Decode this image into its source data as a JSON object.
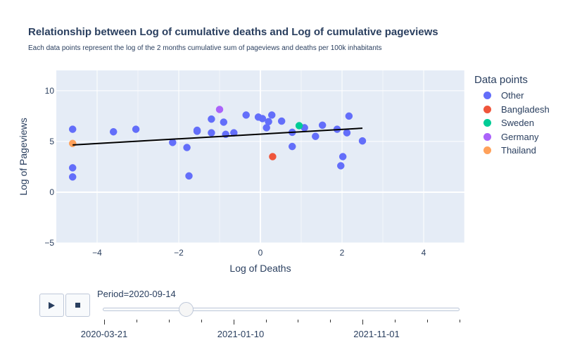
{
  "title": "Relationship between Log of cumulative deaths and Log of cumulative pageviews",
  "subtitle": "Each data points represent the log of the 2 months cumulative sum of pageviews and deaths per 100k inhabitants",
  "legend": {
    "title": "Data points",
    "items": [
      {
        "label": "Other",
        "color": "#636efa"
      },
      {
        "label": "Bangladesh",
        "color": "#ef553b"
      },
      {
        "label": "Sweden",
        "color": "#00cc96"
      },
      {
        "label": "Germany",
        "color": "#ab63fa"
      },
      {
        "label": "Thailand",
        "color": "#ffa15a"
      }
    ]
  },
  "chart_data": {
    "type": "scatter",
    "xlabel": "Log of Deaths",
    "ylabel": "Log of Pageviews",
    "xlim": [
      -5,
      5
    ],
    "ylim": [
      -5,
      12
    ],
    "xticks": [
      -4,
      -2,
      0,
      2,
      4
    ],
    "xtick_labels": [
      "−4",
      "−2",
      "0",
      "2",
      "4"
    ],
    "yticks": [
      -5,
      0,
      5,
      10
    ],
    "ytick_labels": [
      "−5",
      "0",
      "5",
      "10"
    ],
    "grid": true,
    "legend_position": "right",
    "series": [
      {
        "name": "Other",
        "color": "#636efa",
        "points": [
          [
            -4.6,
            6.2
          ],
          [
            -4.6,
            2.4
          ],
          [
            -4.6,
            1.5
          ],
          [
            -3.6,
            5.95
          ],
          [
            -3.05,
            6.2
          ],
          [
            -2.15,
            4.9
          ],
          [
            -1.8,
            4.4
          ],
          [
            -1.75,
            1.6
          ],
          [
            -1.55,
            6.0
          ],
          [
            -1.55,
            6.1
          ],
          [
            -1.2,
            5.85
          ],
          [
            -1.2,
            7.2
          ],
          [
            -0.9,
            6.9
          ],
          [
            -0.85,
            5.7
          ],
          [
            -0.65,
            5.85
          ],
          [
            -0.35,
            7.6
          ],
          [
            -0.05,
            7.4
          ],
          [
            0.05,
            7.25
          ],
          [
            0.15,
            6.35
          ],
          [
            0.2,
            6.95
          ],
          [
            0.28,
            7.6
          ],
          [
            0.52,
            7.0
          ],
          [
            0.78,
            5.9
          ],
          [
            0.78,
            4.5
          ],
          [
            1.08,
            6.35
          ],
          [
            1.35,
            5.5
          ],
          [
            1.52,
            6.6
          ],
          [
            1.88,
            6.2
          ],
          [
            1.97,
            2.6
          ],
          [
            2.02,
            3.5
          ],
          [
            2.12,
            5.85
          ],
          [
            2.17,
            7.5
          ],
          [
            2.5,
            5.05
          ]
        ]
      },
      {
        "name": "Bangladesh",
        "color": "#ef553b",
        "points": [
          [
            0.3,
            3.5
          ]
        ]
      },
      {
        "name": "Sweden",
        "color": "#00cc96",
        "points": [
          [
            0.95,
            6.55
          ]
        ]
      },
      {
        "name": "Germany",
        "color": "#ab63fa",
        "points": [
          [
            -1.0,
            8.15
          ]
        ]
      },
      {
        "name": "Thailand",
        "color": "#ffa15a",
        "points": [
          [
            -4.6,
            4.8
          ]
        ]
      }
    ],
    "trendline": {
      "color": "#000000",
      "points": [
        [
          -4.6,
          4.65
        ],
        [
          2.5,
          6.3
        ]
      ]
    }
  },
  "animation": {
    "play_icon": "play-icon",
    "stop_icon": "stop-icon",
    "slider_label": "Period=2020-09-14",
    "slider_fraction": 0.23,
    "slider_tick_labels": [
      "2020-03-21",
      "2021-01-10",
      "2021-11-01"
    ],
    "slider_tick_count": 12
  }
}
